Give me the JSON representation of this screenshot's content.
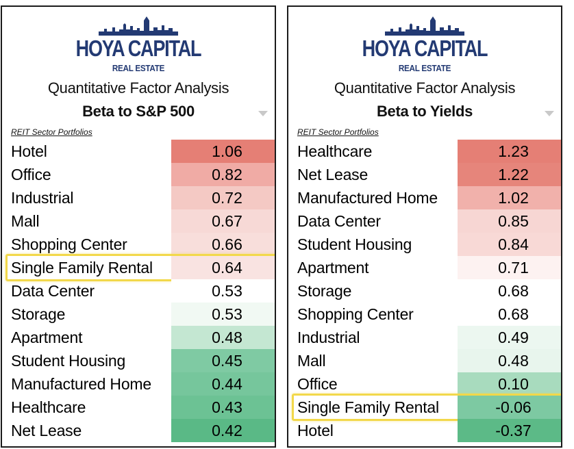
{
  "chart_data": [
    {
      "type": "table",
      "brand": "HOYA CAPITAL",
      "brand_sub": "REAL ESTATE",
      "subtitle": "Quantitative Factor Analysis",
      "title": "Beta to S&P 500",
      "column_header": "REIT Sector Portfolios",
      "highlighted_sector": "Single Family Rental",
      "categories": [
        "Hotel",
        "Office",
        "Industrial",
        "Mall",
        "Shopping Center",
        "Single Family Rental",
        "Data Center",
        "Storage",
        "Apartment",
        "Student Housing",
        "Manufactured Home",
        "Healthcare",
        "Net Lease"
      ],
      "values": [
        "1.06",
        "0.82",
        "0.72",
        "0.67",
        "0.66",
        "0.64",
        "0.53",
        "0.53",
        "0.48",
        "0.45",
        "0.44",
        "0.43",
        "0.42"
      ],
      "colors": [
        "#e57f75",
        "#f0aba5",
        "#f4c9c4",
        "#f7d9d6",
        "#f8dedb",
        "#f9e3e1",
        "#ffffff",
        "#f1f9f3",
        "#c4e7d2",
        "#7fcaa3",
        "#76c69c",
        "#6cc294",
        "#5ab986"
      ]
    },
    {
      "type": "table",
      "brand": "HOYA CAPITAL",
      "brand_sub": "REAL ESTATE",
      "subtitle": "Quantitative Factor Analysis",
      "title": "Beta to Yields",
      "column_header": "REIT Sector Portfolios",
      "highlighted_sector": "Single Family Rental",
      "categories": [
        "Healthcare",
        "Net Lease",
        "Manufactured Home",
        "Data Center",
        "Student Housing",
        "Apartment",
        "Storage",
        "Shopping Center",
        "Industrial",
        "Mall",
        "Office",
        "Single Family Rental",
        "Hotel"
      ],
      "values": [
        "1.23",
        "1.22",
        "1.02",
        "0.85",
        "0.84",
        "0.71",
        "0.68",
        "0.68",
        "0.49",
        "0.48",
        "0.10",
        "-0.06",
        "-0.37"
      ],
      "colors": [
        "#e57f75",
        "#e6857b",
        "#f1b1ab",
        "#f7d6d3",
        "#f8d9d6",
        "#fdf2f1",
        "#ffffff",
        "#ffffff",
        "#ecf7f0",
        "#e8f5ed",
        "#a8dbbe",
        "#7dc9a2",
        "#5cba87"
      ]
    }
  ]
}
